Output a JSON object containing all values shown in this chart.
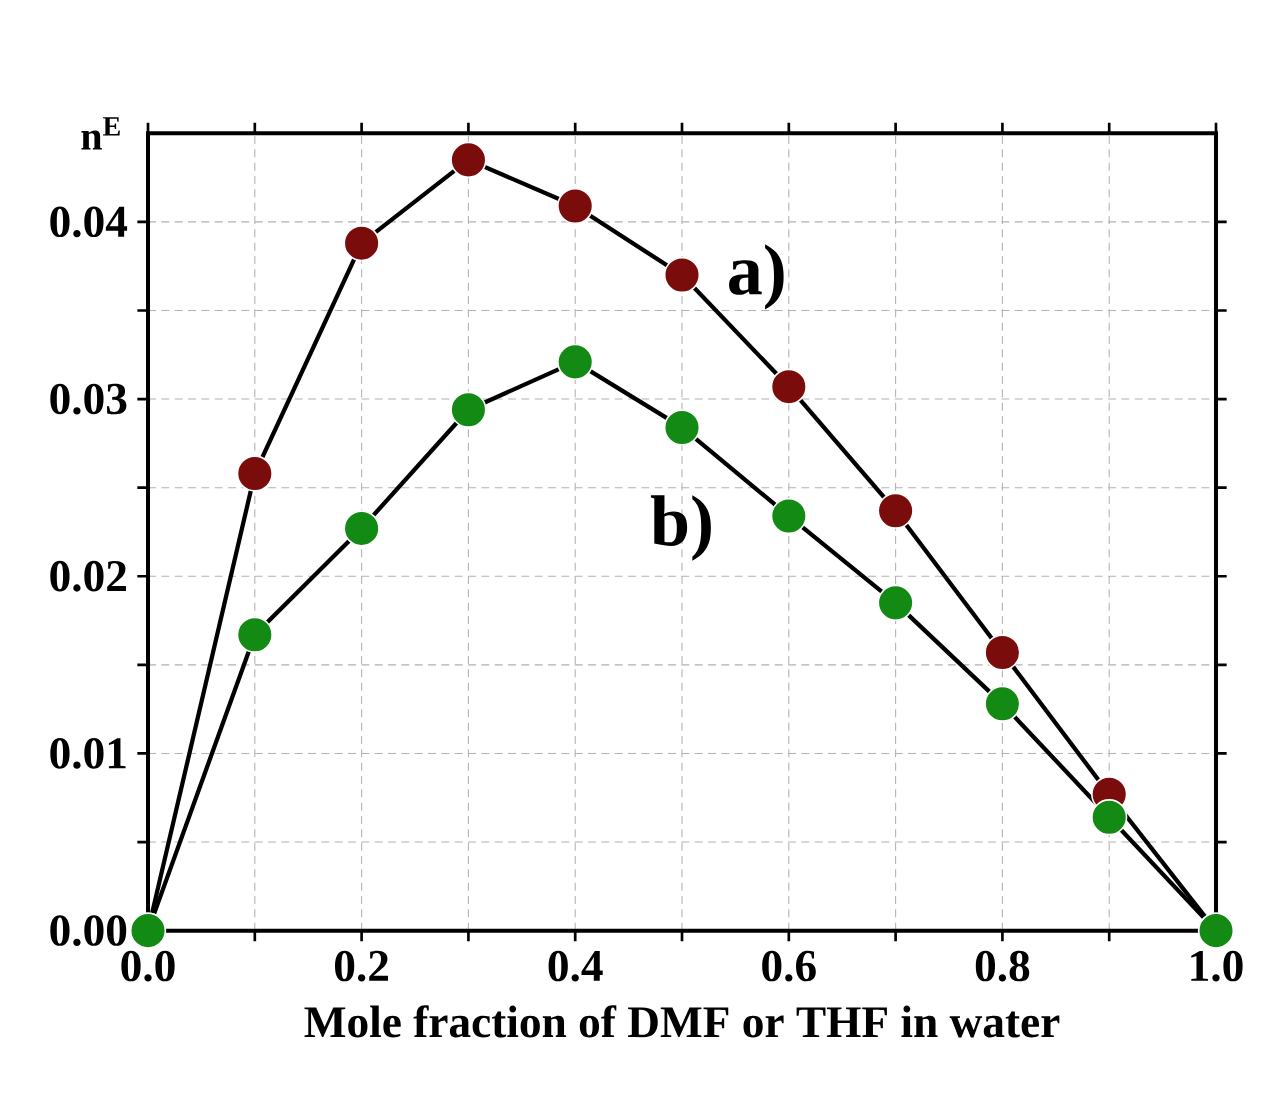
{
  "chart_data": {
    "type": "line",
    "xlabel": "Mole fraction of DMF or THF in water",
    "ylabel": "n$^{E}$",
    "x": [
      0,
      0.1,
      0.2,
      0.3,
      0.4,
      0.5,
      0.6,
      0.7,
      0.8,
      0.9,
      1.0
    ],
    "series": [
      {
        "color": "#7b0c0c",
        "values": [
          0,
          0.0258,
          0.0388,
          0.0435,
          0.0409,
          0.037,
          0.0307,
          0.0237,
          0.0157,
          0.0077,
          0
        ]
      },
      {
        "color": "#138a13",
        "values": [
          0,
          0.0167,
          0.0227,
          0.0294,
          0.0321,
          0.0284,
          0.0234,
          0.0185,
          0.0128,
          0.0064,
          0
        ]
      }
    ],
    "annotations": [
      "a)",
      "b)"
    ],
    "xlim": [
      0,
      1
    ],
    "ylim": [
      0,
      0.045
    ],
    "xticks": [
      {
        "value": 0,
        "label": "0.0"
      },
      {
        "value": 0.1,
        "label": null
      },
      {
        "value": 0.2,
        "label": "0.2"
      },
      {
        "value": 0.3,
        "label": null
      },
      {
        "value": 0.4,
        "label": "0.4"
      },
      {
        "value": 0.5,
        "label": null
      },
      {
        "value": 0.6,
        "label": "0.6"
      },
      {
        "value": 0.7,
        "label": null
      },
      {
        "value": 0.8,
        "label": "0.8"
      },
      {
        "value": 0.9,
        "label": null
      },
      {
        "value": 1,
        "label": "1.0"
      }
    ],
    "yticks": [
      {
        "value": 0,
        "label": "0.00"
      },
      {
        "value": 0.005,
        "label": null
      },
      {
        "value": 0.01,
        "label": "0.01"
      },
      {
        "value": 0.015,
        "label": null
      },
      {
        "value": 0.02,
        "label": "0.02"
      },
      {
        "value": 0.025,
        "label": null
      },
      {
        "value": 0.03,
        "label": "0.03"
      },
      {
        "value": 0.035,
        "label": null
      },
      {
        "value": 0.04,
        "label": "0.04"
      }
    ],
    "grid": true,
    "marker": "circle",
    "line_style": "solid"
  }
}
